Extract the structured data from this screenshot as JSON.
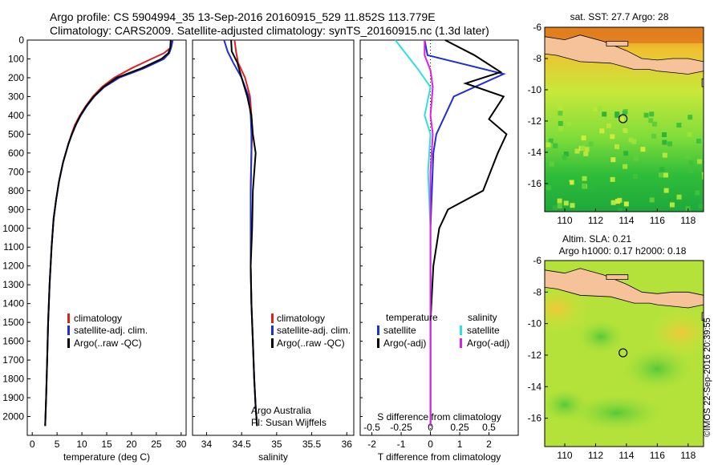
{
  "header": {
    "line1": "Argo profile: CS 5904994_35 13-Sep-2016 20160915_529 11.852S 113.779E",
    "line2": "Climatology: CARS2009. Satellite-adjusted climatology: synTS_20160915.nc (1.3d later)"
  },
  "credit": "©IMOS 22-Sep-2016 20:39:55",
  "colors": {
    "climatology": "#dd2222",
    "satellite": "#1f2fd0",
    "argo": "#000000",
    "argo_adj_sal": "#e020e0",
    "sat_sal": "#30e0e0",
    "land": "#f5c29a"
  },
  "chart_data": [
    {
      "type": "line",
      "xlabel": "temperature (deg C)",
      "ylabel": "",
      "xlim": [
        -1,
        31
      ],
      "ylim": [
        2100,
        0
      ],
      "xticks": [
        "0",
        "5",
        "10",
        "15",
        "20",
        "25",
        "30"
      ],
      "yticks": [
        "0",
        "100",
        "200",
        "300",
        "400",
        "500",
        "600",
        "700",
        "800",
        "900",
        "1000",
        "1100",
        "1200",
        "1300",
        "1400",
        "1500",
        "1600",
        "1700",
        "1800",
        "1900",
        "2000"
      ],
      "legend": [
        "climatology",
        "satellite-adj. clim.",
        "Argo(..raw -QC)"
      ],
      "legend_position": "center",
      "series": [
        {
          "name": "climatology",
          "x": [
            28.2,
            27.9,
            26.5,
            24,
            20,
            16.5,
            14,
            12.2,
            10.8,
            9.6,
            8.6,
            7.9,
            7.3,
            6.2,
            5.4,
            4.8,
            4.3,
            3.9,
            3.5,
            3.2,
            3.0,
            2.8,
            2.6
          ],
          "y": [
            0,
            40,
            70,
            100,
            150,
            200,
            250,
            300,
            350,
            400,
            450,
            500,
            550,
            650,
            750,
            850,
            950,
            1100,
            1300,
            1500,
            1700,
            1900,
            2050
          ]
        },
        {
          "name": "satellite-adj. clim.",
          "x": [
            28.3,
            28.0,
            27.6,
            26.5,
            22.5,
            17.5,
            14.5,
            12.5,
            11.0,
            9.8,
            8.8,
            8.0,
            7.3,
            6.2,
            5.4,
            4.8,
            4.3,
            3.9,
            3.5,
            3.2,
            3.0,
            2.8,
            2.6
          ],
          "y": [
            0,
            40,
            70,
            100,
            150,
            200,
            250,
            300,
            350,
            400,
            450,
            500,
            550,
            650,
            750,
            850,
            950,
            1100,
            1300,
            1500,
            1700,
            1900,
            2050
          ]
        },
        {
          "name": "Argo(..raw -QC)",
          "x": [
            27.9,
            27.8,
            27.4,
            26.0,
            22.0,
            17.0,
            14.3,
            12.4,
            10.9,
            9.7,
            8.8,
            8.0,
            7.3,
            6.2,
            5.4,
            4.8,
            4.3,
            3.9,
            3.5,
            3.2,
            3.0,
            2.8,
            2.6
          ],
          "y": [
            0,
            40,
            70,
            100,
            150,
            200,
            250,
            300,
            350,
            400,
            450,
            500,
            550,
            650,
            750,
            850,
            950,
            1100,
            1300,
            1500,
            1700,
            1900,
            2050
          ]
        }
      ]
    },
    {
      "type": "line",
      "xlabel": "salinity",
      "ylabel": "",
      "xlim": [
        33.8,
        36.1
      ],
      "ylim": [
        2100,
        0
      ],
      "xticks": [
        "34",
        "34.5",
        "35",
        "35.5",
        "36"
      ],
      "legend": [
        "climatology",
        "satellite-adj. clim.",
        "Argo(..raw -QC)"
      ],
      "legend_position": "bottom-right",
      "annotations": [
        "Argo Australia",
        "PI: Susan Wijffels"
      ],
      "series": [
        {
          "name": "climatology",
          "x": [
            34.4,
            34.42,
            34.45,
            34.55,
            34.62,
            34.64,
            34.65,
            34.64,
            34.63,
            34.63,
            34.63,
            34.64,
            34.66,
            34.68,
            34.7,
            34.72
          ],
          "y": [
            0,
            60,
            120,
            200,
            300,
            400,
            500,
            600,
            800,
            1000,
            1200,
            1400,
            1600,
            1800,
            1950,
            2050
          ]
        },
        {
          "name": "satellite-adj. clim.",
          "x": [
            34.25,
            34.3,
            34.38,
            34.5,
            34.6,
            34.63,
            34.64,
            34.64,
            34.63,
            34.63,
            34.63,
            34.64,
            34.66,
            34.68,
            34.7,
            34.72
          ],
          "y": [
            0,
            60,
            120,
            200,
            300,
            400,
            500,
            600,
            800,
            1000,
            1200,
            1400,
            1600,
            1800,
            1950,
            2050
          ]
        },
        {
          "name": "Argo(..raw -QC)",
          "x": [
            34.35,
            34.36,
            34.44,
            34.5,
            34.58,
            34.64,
            34.66,
            34.7,
            34.66,
            34.65,
            34.63,
            34.64,
            34.66,
            34.68,
            34.7,
            34.72
          ],
          "y": [
            0,
            60,
            120,
            200,
            300,
            400,
            500,
            600,
            800,
            1000,
            1200,
            1400,
            1600,
            1800,
            1950,
            2050
          ]
        }
      ]
    },
    {
      "type": "line",
      "xlabel": "T difference from climatology",
      "x2label": "S difference from climatology",
      "xlim": [
        -2.4,
        3
      ],
      "ylim": [
        2100,
        0
      ],
      "xticks": [
        "-2",
        "-1",
        "0",
        "1",
        "2"
      ],
      "x2ticks": [
        "-0.5",
        "-0.25",
        "0",
        "0.25",
        "0.5"
      ],
      "legend": [
        "temperature",
        "satellite",
        "Argo(-adj)",
        "salinity",
        "satellite",
        "Argo(-adj)"
      ],
      "legend_position": "center",
      "series": [
        {
          "name": "satellite",
          "x": [
            -0.2,
            -0.1,
            2.5,
            1.5,
            0.8,
            0.5,
            0.2,
            0.1,
            0.05,
            0.0,
            0.0,
            0.0,
            0.0,
            0.0
          ],
          "y": [
            0,
            80,
            180,
            250,
            300,
            400,
            500,
            600,
            800,
            1000,
            1200,
            1500,
            1800,
            2050
          ]
        },
        {
          "name": "Argo(-adj)",
          "x": [
            0.5,
            1.5,
            2.4,
            1.2,
            2.5,
            2.0,
            2.6,
            2.3,
            1.8,
            0.6,
            0.3,
            0.1,
            0.0,
            0.0
          ],
          "y": [
            0,
            80,
            170,
            230,
            300,
            420,
            500,
            600,
            800,
            900,
            1000,
            1200,
            1500,
            2050
          ]
        },
        {
          "name": "satellite",
          "x": [
            -0.3,
            -0.2,
            -0.1,
            0.0,
            -0.05,
            0.0,
            -0.02,
            0.0,
            0.0,
            0.0,
            0.0
          ],
          "y": [
            0,
            80,
            160,
            250,
            400,
            500,
            700,
            1000,
            1400,
            1800,
            2050
          ]
        },
        {
          "name": "Argo(-adj)",
          "x": [
            -0.05,
            -0.05,
            0.0,
            0.02,
            0.0,
            0.02,
            0.0,
            0.0,
            0.0,
            0.0
          ],
          "y": [
            0,
            80,
            160,
            250,
            400,
            500,
            700,
            1000,
            1500,
            2050
          ]
        }
      ]
    },
    {
      "type": "heatmap",
      "title": "sat. SST: 27.7 Argo: 28",
      "xticks": [
        "110",
        "112",
        "114",
        "116",
        "118"
      ],
      "yticks": [
        "-6",
        "-8",
        "-10",
        "-12",
        "-14",
        "-16"
      ],
      "xlim": [
        108.7,
        119
      ],
      "ylim": [
        -17.8,
        -6
      ],
      "marker": {
        "lon": 113.779,
        "lat": -11.852
      }
    },
    {
      "type": "heatmap",
      "title": "Altim. SLA: 0.21",
      "subtitle": "Argo h1000: 0.17 h2000: 0.18",
      "xticks": [
        "110",
        "112",
        "114",
        "116",
        "118"
      ],
      "yticks": [
        "-6",
        "-8",
        "-10",
        "-12",
        "-14",
        "-16"
      ],
      "xlim": [
        108.7,
        119
      ],
      "ylim": [
        -17.8,
        -6
      ],
      "marker": {
        "lon": 113.779,
        "lat": -11.852
      }
    }
  ]
}
